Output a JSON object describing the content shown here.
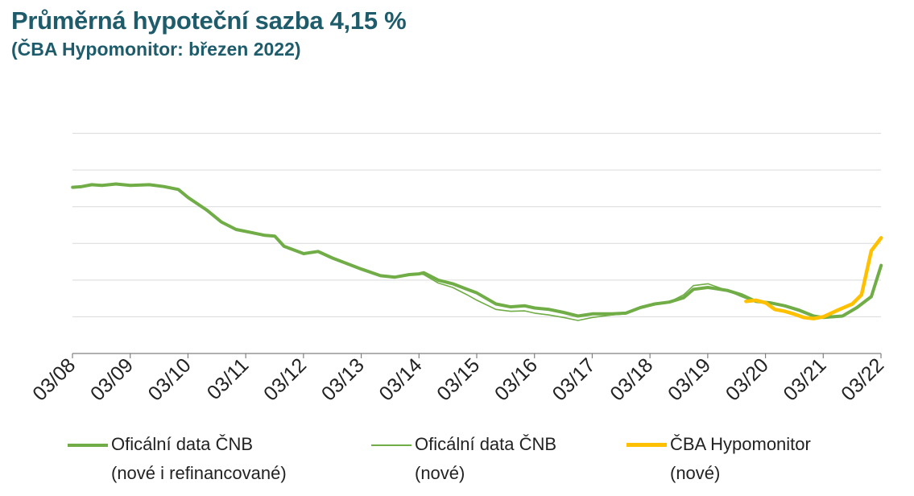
{
  "header": {
    "title": "Průměrná hypoteční sazba 4,15 %",
    "subtitle": "(ČBA Hypomonitor: březen 2022)"
  },
  "colors": {
    "title": "#1f5c6b",
    "cnb_total": "#70ad47",
    "cnb_new": "#70ad47",
    "cba": "#ffc000",
    "grid": "#d9d9d9",
    "axis": "#808080"
  },
  "chart_data": {
    "type": "line",
    "title": "Průměrná hypoteční sazba 4,15 %",
    "xlabel": "",
    "ylabel": "",
    "x_tick_labels": [
      "03/08",
      "03/09",
      "03/10",
      "03/11",
      "03/12",
      "03/13",
      "03/14",
      "03/15",
      "03/16",
      "03/17",
      "03/18",
      "03/19",
      "03/20",
      "03/21",
      "03/22"
    ],
    "x_range": [
      2008.167,
      2022.167
    ],
    "y_range": [
      1.0,
      8.0
    ],
    "y_gridlines": [
      2.0,
      3.0,
      4.0,
      5.0,
      6.0,
      7.0
    ],
    "y_axis_labels_shown": false,
    "grid": true,
    "legend_position": "bottom",
    "series": [
      {
        "name": "Oficální data ČNB (nové i refinancované)",
        "style": "thick",
        "points": [
          [
            2008.17,
            5.53
          ],
          [
            2008.33,
            5.55
          ],
          [
            2008.5,
            5.6
          ],
          [
            2008.67,
            5.58
          ],
          [
            2008.92,
            5.62
          ],
          [
            2009.17,
            5.58
          ],
          [
            2009.5,
            5.6
          ],
          [
            2009.75,
            5.55
          ],
          [
            2010.0,
            5.47
          ],
          [
            2010.17,
            5.25
          ],
          [
            2010.5,
            4.9
          ],
          [
            2010.75,
            4.58
          ],
          [
            2011.0,
            4.38
          ],
          [
            2011.25,
            4.3
          ],
          [
            2011.5,
            4.22
          ],
          [
            2011.67,
            4.2
          ],
          [
            2011.83,
            3.92
          ],
          [
            2012.17,
            3.72
          ],
          [
            2012.42,
            3.78
          ],
          [
            2012.67,
            3.6
          ],
          [
            2012.92,
            3.45
          ],
          [
            2013.17,
            3.3
          ],
          [
            2013.5,
            3.12
          ],
          [
            2013.75,
            3.08
          ],
          [
            2014.0,
            3.15
          ],
          [
            2014.17,
            3.17
          ],
          [
            2014.25,
            3.2
          ],
          [
            2014.5,
            3.0
          ],
          [
            2014.75,
            2.9
          ],
          [
            2015.0,
            2.75
          ],
          [
            2015.17,
            2.65
          ],
          [
            2015.5,
            2.35
          ],
          [
            2015.75,
            2.27
          ],
          [
            2016.0,
            2.3
          ],
          [
            2016.17,
            2.24
          ],
          [
            2016.42,
            2.2
          ],
          [
            2016.67,
            2.12
          ],
          [
            2016.92,
            2.02
          ],
          [
            2017.17,
            2.08
          ],
          [
            2017.5,
            2.08
          ],
          [
            2017.75,
            2.1
          ],
          [
            2018.0,
            2.25
          ],
          [
            2018.25,
            2.35
          ],
          [
            2018.5,
            2.4
          ],
          [
            2018.75,
            2.52
          ],
          [
            2018.92,
            2.75
          ],
          [
            2019.17,
            2.8
          ],
          [
            2019.5,
            2.72
          ],
          [
            2019.75,
            2.6
          ],
          [
            2020.0,
            2.42
          ],
          [
            2020.25,
            2.38
          ],
          [
            2020.5,
            2.3
          ],
          [
            2020.75,
            2.18
          ],
          [
            2021.0,
            2.02
          ],
          [
            2021.17,
            1.98
          ],
          [
            2021.5,
            2.02
          ],
          [
            2021.75,
            2.25
          ],
          [
            2022.0,
            2.55
          ],
          [
            2022.17,
            3.4
          ]
        ]
      },
      {
        "name": "Oficální data ČNB (nové)",
        "style": "thin",
        "points": [
          [
            2008.17,
            5.53
          ],
          [
            2008.33,
            5.55
          ],
          [
            2008.5,
            5.6
          ],
          [
            2008.67,
            5.58
          ],
          [
            2008.92,
            5.62
          ],
          [
            2009.17,
            5.58
          ],
          [
            2009.5,
            5.6
          ],
          [
            2009.75,
            5.55
          ],
          [
            2010.0,
            5.47
          ],
          [
            2010.17,
            5.25
          ],
          [
            2010.5,
            4.9
          ],
          [
            2010.75,
            4.58
          ],
          [
            2011.0,
            4.38
          ],
          [
            2011.25,
            4.3
          ],
          [
            2011.5,
            4.22
          ],
          [
            2011.67,
            4.2
          ],
          [
            2011.83,
            3.92
          ],
          [
            2012.17,
            3.72
          ],
          [
            2012.42,
            3.78
          ],
          [
            2012.67,
            3.6
          ],
          [
            2012.92,
            3.45
          ],
          [
            2013.17,
            3.3
          ],
          [
            2013.5,
            3.12
          ],
          [
            2013.75,
            3.08
          ],
          [
            2014.0,
            3.15
          ],
          [
            2014.17,
            3.17
          ],
          [
            2014.25,
            3.15
          ],
          [
            2014.5,
            2.92
          ],
          [
            2014.75,
            2.8
          ],
          [
            2015.0,
            2.6
          ],
          [
            2015.17,
            2.45
          ],
          [
            2015.5,
            2.2
          ],
          [
            2015.75,
            2.15
          ],
          [
            2016.0,
            2.16
          ],
          [
            2016.17,
            2.1
          ],
          [
            2016.42,
            2.05
          ],
          [
            2016.67,
            1.98
          ],
          [
            2016.92,
            1.9
          ],
          [
            2017.17,
            1.98
          ],
          [
            2017.5,
            2.05
          ],
          [
            2017.75,
            2.08
          ],
          [
            2018.0,
            2.25
          ],
          [
            2018.25,
            2.35
          ],
          [
            2018.5,
            2.4
          ],
          [
            2018.75,
            2.6
          ],
          [
            2018.92,
            2.85
          ],
          [
            2019.17,
            2.9
          ],
          [
            2019.5,
            2.72
          ],
          [
            2019.75,
            2.55
          ],
          [
            2020.0,
            2.4
          ],
          [
            2020.25,
            2.38
          ],
          [
            2020.5,
            2.28
          ],
          [
            2020.75,
            2.15
          ],
          [
            2021.0,
            2.0
          ],
          [
            2021.17,
            1.98
          ],
          [
            2021.5,
            2.02
          ],
          [
            2021.75,
            2.25
          ],
          [
            2022.0,
            2.55
          ],
          [
            2022.17,
            3.4
          ]
        ]
      },
      {
        "name": "ČBA Hypomonitor (nové)",
        "style": "medium",
        "points": [
          [
            2019.83,
            2.42
          ],
          [
            2020.0,
            2.45
          ],
          [
            2020.17,
            2.38
          ],
          [
            2020.33,
            2.2
          ],
          [
            2020.5,
            2.15
          ],
          [
            2020.67,
            2.07
          ],
          [
            2020.83,
            1.98
          ],
          [
            2021.0,
            1.95
          ],
          [
            2021.17,
            2.0
          ],
          [
            2021.42,
            2.18
          ],
          [
            2021.67,
            2.35
          ],
          [
            2021.83,
            2.6
          ],
          [
            2022.0,
            3.8
          ],
          [
            2022.17,
            4.15
          ]
        ]
      }
    ]
  },
  "legend": [
    {
      "line1": "Oficální data ČNB",
      "line2": "(nové i refinancované)"
    },
    {
      "line1": "Oficální data ČNB",
      "line2": "(nové)"
    },
    {
      "line1": "ČBA Hypomonitor",
      "line2": "(nové)"
    }
  ]
}
